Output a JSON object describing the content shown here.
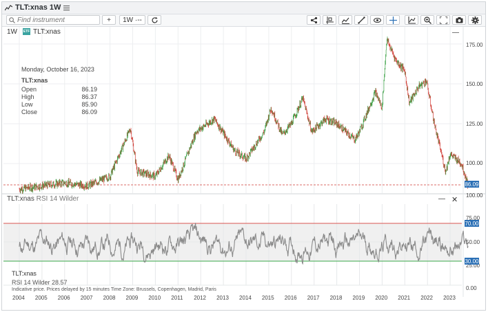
{
  "window": {
    "title": "TLT:xnas 1W"
  },
  "toolbar": {
    "search_placeholder": "Find instrument",
    "add_label": "+",
    "interval_label": "1W ·--"
  },
  "chart": {
    "interval": "1W",
    "symbol": "TLT:xnas",
    "collapse_label": "—",
    "info": {
      "date": "Monday, October 16, 2023",
      "symbol": "TLT:xnas",
      "rows": [
        {
          "label": "Open",
          "value": "86.19"
        },
        {
          "label": "High",
          "value": "86.37"
        },
        {
          "label": "Low",
          "value": "85.90"
        },
        {
          "label": "Close",
          "value": "86.09"
        }
      ]
    },
    "price_axis": [
      "175.00",
      "150.00",
      "125.00",
      "100.00"
    ],
    "last_price": "86.09"
  },
  "rsi": {
    "header_symbol": "TLT:xnas",
    "header_indicator": "RSI 14 Wilder",
    "axis": [
      "100.00",
      "75.00",
      "50.00",
      "25.00",
      "0.00"
    ],
    "upper_band": "70.00",
    "lower_band": "30.00",
    "legend_symbol": "TLT:xnas",
    "legend_value": "RSI 14 Wilder 28.57",
    "close_label": "✕",
    "minimize_label": "—"
  },
  "footer": {
    "text": "Indicative price. Prices delayed by 15 minutes   Time Zone: Brussels, Copenhagen, Madrid, Paris"
  },
  "x_axis": [
    "2004",
    "2005",
    "2006",
    "2007",
    "2008",
    "2009",
    "2010",
    "2011",
    "2012",
    "2013",
    "2014",
    "2015",
    "2016",
    "2017",
    "2018",
    "2019",
    "2020",
    "2021",
    "2022",
    "2023"
  ],
  "colors": {
    "up": "#2e9b3a",
    "down": "#d03a33",
    "rsi_line": "#8a8a8a",
    "upper_band": "#d9534f",
    "lower_band": "#3aa84a",
    "band_fill": "#f0f0f0",
    "price_label": "#2a6fb5"
  },
  "icons": [
    "share-icon",
    "crosshair-icon",
    "indicator-icon",
    "draw-icon",
    "eye-icon",
    "move-icon",
    "chart-type-icon",
    "zoom-icon",
    "fullscreen-icon",
    "camera-icon",
    "settings-icon",
    "refresh-icon",
    "menu-icon",
    "search-icon",
    "chart-icon"
  ]
}
